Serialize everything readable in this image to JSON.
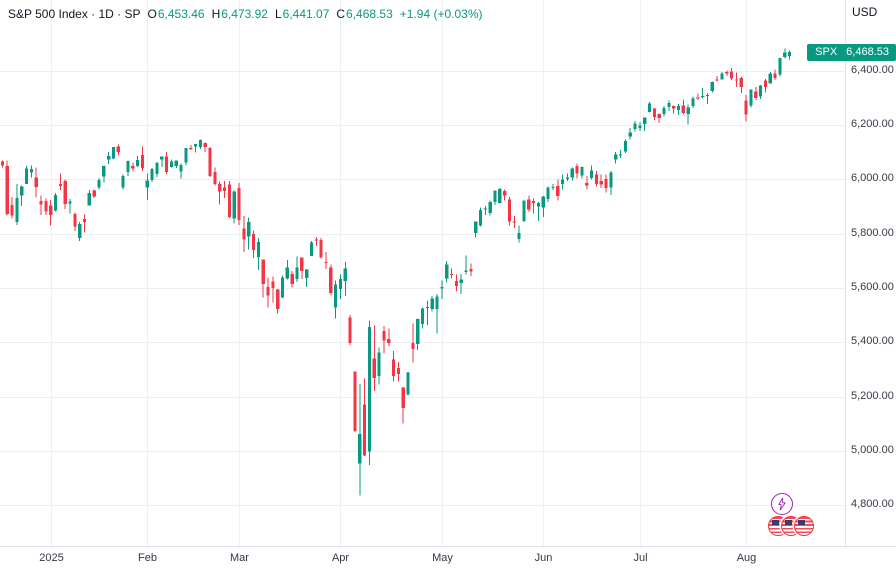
{
  "header": {
    "symbol_title": "S&P 500 Index · 1D · SP",
    "ohlc": [
      {
        "key": "O",
        "value": "6,453.46"
      },
      {
        "key": "H",
        "value": "6,473.92"
      },
      {
        "key": "L",
        "value": "6,441.07"
      },
      {
        "key": "C",
        "value": "6,468.53"
      }
    ],
    "change": "+1.94 (+0.03%)",
    "currency": "USD"
  },
  "price_label": {
    "symbol": "SPX",
    "price": "6,468.53"
  },
  "icons": {
    "lightning": "lightning-bolt",
    "events": "economic-events-us-flags"
  },
  "colors": {
    "up": "#089981",
    "down": "#f23645",
    "grid": "#edf0f3",
    "axis_line": "#e0e3eb",
    "axis_text": "#363a45",
    "header_text": "#131722",
    "badge": "#089981",
    "icon_purple": "#9c27b0",
    "icon_red": "#f23645"
  },
  "chart_data": {
    "type": "candlestick",
    "title": "S&P 500 Index",
    "interval": "1D",
    "currency": "USD",
    "last_close": 6468.53,
    "ylim": [
      4650,
      6660
    ],
    "y_ticks": [
      {
        "price": 6400,
        "label": "6,400.00"
      },
      {
        "price": 6200,
        "label": "6,200.00"
      },
      {
        "price": 6000,
        "label": "6,000.00"
      },
      {
        "price": 5800,
        "label": "5,800.00"
      },
      {
        "price": 5600,
        "label": "5,600.00"
      },
      {
        "price": 5400,
        "label": "5,400.00"
      },
      {
        "price": 5200,
        "label": "5,200.00"
      },
      {
        "price": 5000,
        "label": "5,000.00"
      },
      {
        "price": 4800,
        "label": "4,800.00"
      }
    ],
    "x_ticks": [
      {
        "index": 10,
        "label": "2025"
      },
      {
        "index": 30,
        "label": "Feb"
      },
      {
        "index": 49,
        "label": "Mar"
      },
      {
        "index": 70,
        "label": "Apr"
      },
      {
        "index": 91,
        "label": "May"
      },
      {
        "index": 112,
        "label": "Jun"
      },
      {
        "index": 132,
        "label": "Jul"
      },
      {
        "index": 154,
        "label": "Aug"
      }
    ],
    "candles": [
      [
        6066,
        6070,
        6044,
        6051
      ],
      [
        6049,
        6070,
        5867,
        5872
      ],
      [
        5906,
        5935,
        5855,
        5867
      ],
      [
        5842,
        5982,
        5832,
        5931
      ],
      [
        5940,
        5978,
        5902,
        5974
      ],
      [
        5982,
        6049,
        5982,
        6040
      ],
      [
        6025,
        6050,
        6007,
        6037
      ],
      [
        6006,
        6044,
        5933,
        5971
      ],
      [
        5920,
        5941,
        5869,
        5907
      ],
      [
        5920,
        5930,
        5868,
        5882
      ],
      [
        5904,
        5924,
        5830,
        5869
      ],
      [
        5885,
        5949,
        5882,
        5942
      ],
      [
        5982,
        6021,
        5960,
        5975
      ],
      [
        5994,
        6000,
        5890,
        5909
      ],
      [
        5911,
        5928,
        5874,
        5918
      ],
      [
        5873,
        5878,
        5810,
        5827
      ],
      [
        5783,
        5843,
        5773,
        5836
      ],
      [
        5854,
        5871,
        5805,
        5843
      ],
      [
        5903,
        5960,
        5903,
        5950
      ],
      [
        5958,
        5963,
        5931,
        5937
      ],
      [
        5969,
        6004,
        5963,
        5997
      ],
      [
        6010,
        6051,
        5989,
        6049
      ],
      [
        6072,
        6100,
        6057,
        6086
      ],
      [
        6076,
        6119,
        6074,
        6118
      ],
      [
        6121,
        6128,
        6088,
        6101
      ],
      [
        5969,
        6018,
        5962,
        6012
      ],
      [
        6026,
        6070,
        6013,
        6068
      ],
      [
        6049,
        6062,
        6029,
        6039
      ],
      [
        6048,
        6086,
        6046,
        6071
      ],
      [
        6089,
        6120,
        6030,
        6041
      ],
      [
        5969,
        6022,
        5923,
        5995
      ],
      [
        5998,
        6042,
        5990,
        6038
      ],
      [
        6020,
        6062,
        6008,
        6061
      ],
      [
        6072,
        6084,
        6046,
        6084
      ],
      [
        6083,
        6101,
        6019,
        6026
      ],
      [
        6046,
        6073,
        6044,
        6066
      ],
      [
        6049,
        6070,
        6041,
        6069
      ],
      [
        6028,
        6058,
        6003,
        6052
      ],
      [
        6062,
        6116,
        6052,
        6115
      ],
      [
        6116,
        6127,
        6107,
        6115
      ],
      [
        6121,
        6130,
        6099,
        6130
      ],
      [
        6118,
        6147,
        6111,
        6144
      ],
      [
        6134,
        6135,
        6100,
        6118
      ],
      [
        6115,
        6119,
        6008,
        6013
      ],
      [
        6026,
        6043,
        5977,
        5983
      ],
      [
        5982,
        5992,
        5908,
        5955
      ],
      [
        5970,
        5993,
        5932,
        5956
      ],
      [
        5981,
        5993,
        5858,
        5862
      ],
      [
        5856,
        5959,
        5837,
        5955
      ],
      [
        5968,
        5986,
        5832,
        5850
      ],
      [
        5818,
        5865,
        5732,
        5778
      ],
      [
        5789,
        5860,
        5742,
        5843
      ],
      [
        5799,
        5812,
        5711,
        5739
      ],
      [
        5713,
        5783,
        5666,
        5770
      ],
      [
        5705,
        5705,
        5564,
        5615
      ],
      [
        5603,
        5636,
        5528,
        5572
      ],
      [
        5624,
        5642,
        5546,
        5599
      ],
      [
        5594,
        5597,
        5505,
        5522
      ],
      [
        5564,
        5645,
        5563,
        5639
      ],
      [
        5634,
        5703,
        5631,
        5675
      ],
      [
        5652,
        5662,
        5602,
        5615
      ],
      [
        5633,
        5715,
        5622,
        5675
      ],
      [
        5712,
        5712,
        5632,
        5663
      ],
      [
        5636,
        5670,
        5603,
        5668
      ],
      [
        5718,
        5773,
        5717,
        5768
      ],
      [
        5778,
        5787,
        5754,
        5777
      ],
      [
        5777,
        5784,
        5709,
        5712
      ],
      [
        5696,
        5732,
        5670,
        5693
      ],
      [
        5675,
        5686,
        5572,
        5581
      ],
      [
        5528,
        5628,
        5488,
        5612
      ],
      [
        5597,
        5650,
        5559,
        5633
      ],
      [
        5625,
        5695,
        5571,
        5671
      ],
      [
        5492,
        5500,
        5390,
        5397
      ],
      [
        5293,
        5293,
        5069,
        5074
      ],
      [
        4953,
        5246,
        4835,
        5062
      ],
      [
        5171,
        5267,
        4982,
        4983
      ],
      [
        4998,
        5481,
        4948,
        5457
      ],
      [
        5341,
        5462,
        5220,
        5268
      ],
      [
        5276,
        5381,
        5245,
        5363
      ],
      [
        5442,
        5459,
        5358,
        5406
      ],
      [
        5412,
        5450,
        5386,
        5397
      ],
      [
        5336,
        5367,
        5255,
        5276
      ],
      [
        5305,
        5328,
        5256,
        5283
      ],
      [
        5233,
        5235,
        5101,
        5158
      ],
      [
        5208,
        5290,
        5204,
        5288
      ],
      [
        5398,
        5469,
        5325,
        5376
      ],
      [
        5393,
        5487,
        5372,
        5485
      ],
      [
        5468,
        5528,
        5451,
        5525
      ],
      [
        5529,
        5553,
        5464,
        5529
      ],
      [
        5522,
        5570,
        5513,
        5561
      ],
      [
        5522,
        5577,
        5433,
        5569
      ],
      [
        5598,
        5627,
        5560,
        5604
      ],
      [
        5634,
        5700,
        5620,
        5687
      ],
      [
        5651,
        5672,
        5634,
        5650
      ],
      [
        5625,
        5650,
        5586,
        5607
      ],
      [
        5618,
        5652,
        5578,
        5631
      ],
      [
        5659,
        5720,
        5650,
        5664
      ],
      [
        5670,
        5690,
        5644,
        5660
      ],
      [
        5803,
        5845,
        5786,
        5844
      ],
      [
        5830,
        5897,
        5827,
        5887
      ],
      [
        5888,
        5901,
        5868,
        5893
      ],
      [
        5876,
        5921,
        5866,
        5917
      ],
      [
        5917,
        5959,
        5906,
        5958
      ],
      [
        5913,
        5968,
        5910,
        5964
      ],
      [
        5956,
        5963,
        5921,
        5940
      ],
      [
        5925,
        5934,
        5829,
        5845
      ],
      [
        5844,
        5864,
        5820,
        5842
      ],
      [
        5781,
        5829,
        5767,
        5803
      ],
      [
        5847,
        5922,
        5843,
        5922
      ],
      [
        5925,
        5940,
        5880,
        5889
      ],
      [
        5920,
        5930,
        5874,
        5912
      ],
      [
        5899,
        5917,
        5847,
        5912
      ],
      [
        5896,
        5939,
        5861,
        5936
      ],
      [
        5927,
        5973,
        5916,
        5970
      ],
      [
        5971,
        5982,
        5960,
        5971
      ],
      [
        5976,
        5999,
        5921,
        5939
      ],
      [
        5983,
        6017,
        5963,
        6000
      ],
      [
        6001,
        6021,
        5994,
        6006
      ],
      [
        6006,
        6043,
        5995,
        6039
      ],
      [
        6049,
        6059,
        6002,
        6022
      ],
      [
        6014,
        6047,
        6003,
        6045
      ],
      [
        5986,
        6013,
        5963,
        5977
      ],
      [
        6004,
        6050,
        5999,
        6033
      ],
      [
        6018,
        6030,
        5974,
        5983
      ],
      [
        5993,
        6018,
        5967,
        5981
      ],
      [
        6001,
        6018,
        5952,
        5968
      ],
      [
        5969,
        6030,
        5943,
        6025
      ],
      [
        6073,
        6101,
        6059,
        6092
      ],
      [
        6092,
        6107,
        6079,
        6092
      ],
      [
        6102,
        6146,
        6096,
        6141
      ],
      [
        6157,
        6188,
        6147,
        6173
      ],
      [
        6185,
        6215,
        6175,
        6205
      ],
      [
        6188,
        6210,
        6177,
        6198
      ],
      [
        6203,
        6228,
        6177,
        6227
      ],
      [
        6247,
        6284,
        6246,
        6279
      ],
      [
        6260,
        6262,
        6219,
        6230
      ],
      [
        6240,
        6242,
        6208,
        6226
      ],
      [
        6241,
        6269,
        6232,
        6263
      ],
      [
        6266,
        6290,
        6251,
        6280
      ],
      [
        6270,
        6271,
        6243,
        6260
      ],
      [
        6255,
        6277,
        6236,
        6269
      ],
      [
        6271,
        6293,
        6240,
        6244
      ],
      [
        6241,
        6276,
        6202,
        6264
      ],
      [
        6269,
        6304,
        6262,
        6297
      ],
      [
        6301,
        6315,
        6292,
        6297
      ],
      [
        6306,
        6336,
        6298,
        6306
      ],
      [
        6307,
        6317,
        6278,
        6310
      ],
      [
        6325,
        6360,
        6320,
        6359
      ],
      [
        6368,
        6381,
        6360,
        6363
      ],
      [
        6368,
        6395,
        6368,
        6389
      ],
      [
        6395,
        6401,
        6380,
        6390
      ],
      [
        6396,
        6409,
        6366,
        6371
      ],
      [
        6368,
        6394,
        6340,
        6363
      ],
      [
        6372,
        6379,
        6318,
        6339
      ],
      [
        6290,
        6311,
        6213,
        6238
      ],
      [
        6272,
        6331,
        6265,
        6330
      ],
      [
        6323,
        6340,
        6292,
        6299
      ],
      [
        6305,
        6348,
        6295,
        6345
      ],
      [
        6363,
        6370,
        6320,
        6340
      ],
      [
        6353,
        6395,
        6352,
        6389
      ],
      [
        6390,
        6405,
        6366,
        6373
      ],
      [
        6385,
        6447,
        6378,
        6446
      ],
      [
        6450,
        6481,
        6444,
        6467
      ],
      [
        6453.46,
        6473.92,
        6441.07,
        6468.53
      ]
    ]
  }
}
